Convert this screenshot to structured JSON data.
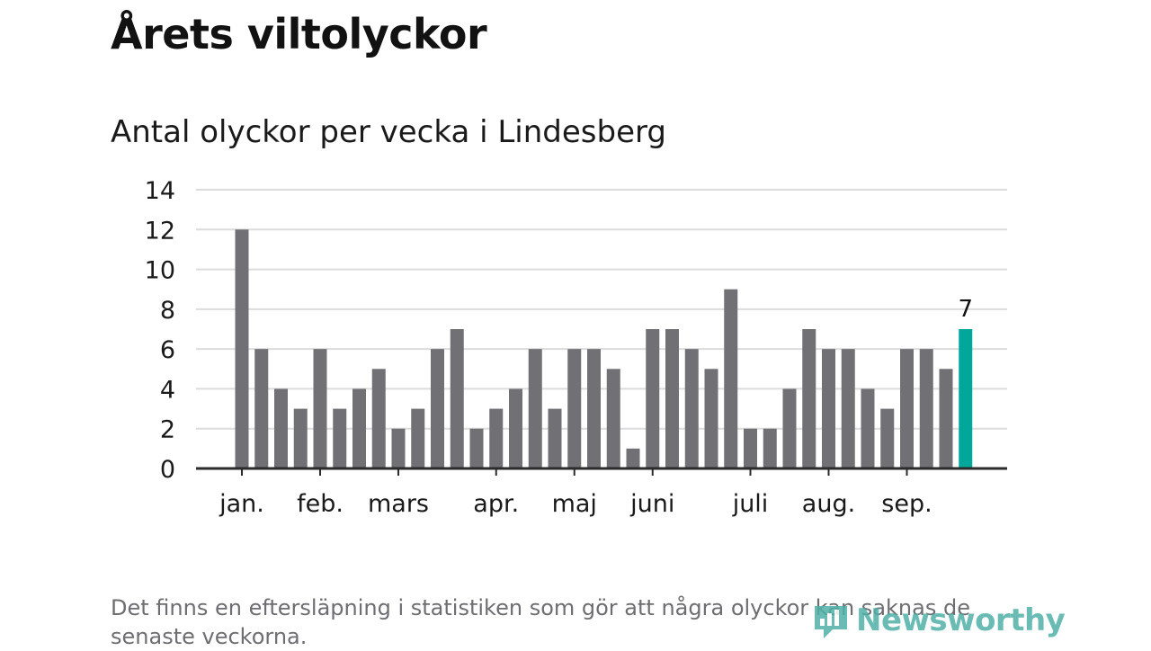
{
  "title": "Årets viltolyckor",
  "chart_data": {
    "type": "bar",
    "title": "Antal olyckor per vecka i Lindesberg",
    "xlabel": "",
    "ylabel": "",
    "ylim": [
      0,
      14
    ],
    "yticks": [
      0,
      2,
      4,
      6,
      8,
      10,
      12,
      14
    ],
    "grid": true,
    "values": [
      12,
      6,
      4,
      3,
      6,
      3,
      4,
      5,
      2,
      3,
      6,
      7,
      2,
      3,
      4,
      6,
      3,
      6,
      6,
      5,
      1,
      7,
      7,
      6,
      5,
      9,
      2,
      2,
      4,
      7,
      6,
      6,
      4,
      3,
      6,
      6,
      5,
      7
    ],
    "month_labels": [
      {
        "label": "jan.",
        "week_index": 0
      },
      {
        "label": "feb.",
        "week_index": 4
      },
      {
        "label": "mars",
        "week_index": 8
      },
      {
        "label": "apr.",
        "week_index": 13
      },
      {
        "label": "maj",
        "week_index": 17
      },
      {
        "label": "juni",
        "week_index": 21
      },
      {
        "label": "juli",
        "week_index": 26
      },
      {
        "label": "aug.",
        "week_index": 30
      },
      {
        "label": "sep.",
        "week_index": 34
      }
    ],
    "highlight": {
      "index": 37,
      "label": "7"
    },
    "colors": {
      "bar": "#717075",
      "highlight": "#00a79a",
      "grid": "#dcdcdc",
      "axis": "#2b2b2b"
    }
  },
  "footnote": "Det finns en eftersläpning i statistiken som gör att några olyckor kan saknas de senaste veckorna.",
  "logo": {
    "text": "Newsworthy",
    "icon": "newsworthy-logo-icon"
  }
}
